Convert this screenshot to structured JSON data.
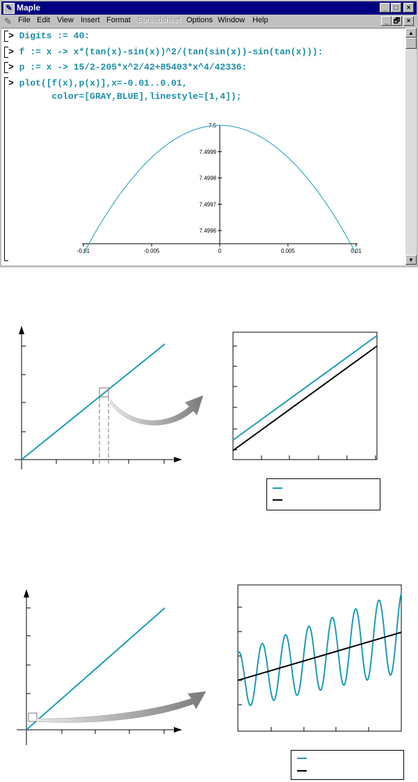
{
  "window": {
    "title": "Maple",
    "titlebar_buttons": [
      "_",
      "□",
      "×"
    ],
    "doc_buttons": [
      "_",
      "🗗",
      "×"
    ]
  },
  "menu": {
    "items": [
      {
        "label": "File",
        "enabled": true
      },
      {
        "label": "Edit",
        "enabled": true
      },
      {
        "label": "View",
        "enabled": true
      },
      {
        "label": "Insert",
        "enabled": true
      },
      {
        "label": "Format",
        "enabled": true
      },
      {
        "label": "Spreadsheet",
        "enabled": false
      },
      {
        "label": "Options",
        "enabled": true
      },
      {
        "label": "Window",
        "enabled": true
      },
      {
        "label": "Help",
        "enabled": true
      }
    ]
  },
  "worksheet": {
    "prompt": ">",
    "commands": [
      "Digits := 40:",
      "f := x -> x*(tan(x)-sin(x))^2/(tan(sin(x))-sin(tan(x))):",
      "p := x -> 15/2-205*x^2/42+85403*x^4/42336:",
      "plot([f(x),p(x)],x=-0.01..0.01,",
      "        color=[GRAY,BLUE],linestyle=[1,4]);"
    ]
  },
  "colors": {
    "curve": "#1b9bb5",
    "black": "#000000",
    "titlebar": "#000080"
  },
  "chart_data": [
    {
      "type": "line",
      "title": "",
      "xlabel": "",
      "ylabel": "",
      "xlim": [
        -0.01,
        0.01
      ],
      "ylim": [
        7.49955,
        7.5
      ],
      "x_ticks": [
        "-0.01",
        "-0.005",
        "0",
        "0.005",
        "0.01"
      ],
      "y_ticks": [
        "7.4996",
        "7.4997",
        "7.4998",
        "7.4999",
        "7.5"
      ],
      "series": [
        {
          "expression": "15/2-205*x^2/42+85403*x^4/42336",
          "color": "#1b9bb5"
        }
      ]
    },
    {
      "type": "line",
      "title": "",
      "grid": false,
      "series": [
        {
          "slope": 1,
          "color": "#1b9bb5"
        }
      ]
    },
    {
      "type": "line",
      "title": "",
      "grid": false,
      "series": [
        {
          "slope": 1,
          "offset": 0.1,
          "color": "#1b9bb5"
        },
        {
          "slope": 1,
          "offset": 0,
          "color": "#000000"
        }
      ]
    },
    {
      "type": "line",
      "title": "",
      "grid": false,
      "series": [
        {
          "slope": 1,
          "color": "#1b9bb5"
        }
      ]
    },
    {
      "type": "line",
      "title": "",
      "grid": false,
      "series": [
        {
          "kind": "oscillation",
          "periods": 7,
          "color": "#1b9bb5"
        },
        {
          "kind": "linear",
          "color": "#000000"
        }
      ]
    }
  ],
  "legend_top": {
    "entries": [
      {
        "color": "#1b9bb5",
        "label": ""
      },
      {
        "color": "#000000",
        "label": ""
      }
    ]
  },
  "legend_bottom": {
    "entries": [
      {
        "color": "#1b9bb5",
        "label": ""
      },
      {
        "color": "#000000",
        "label": ""
      }
    ]
  }
}
